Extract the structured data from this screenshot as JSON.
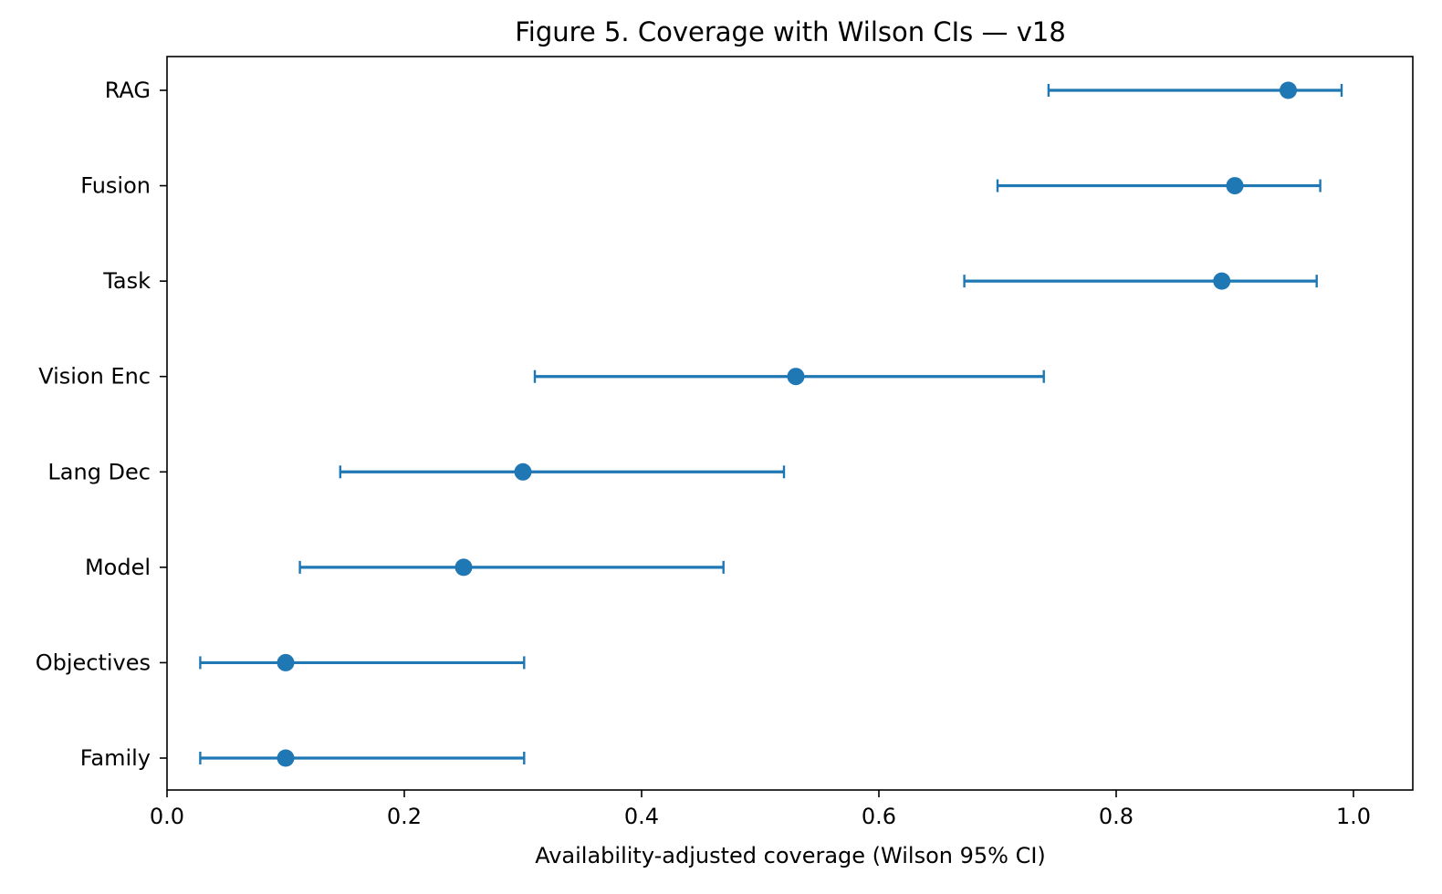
{
  "chart_data": {
    "type": "scatter",
    "title": "Figure 5. Coverage with Wilson CIs — v18",
    "xlabel": "Availability-adjusted coverage (Wilson 95% CI)",
    "ylabel": "",
    "xlim": [
      0.0,
      1.05
    ],
    "xticks": [
      0.0,
      0.2,
      0.4,
      0.6,
      0.8,
      1.0
    ],
    "xtick_labels": [
      "0.0",
      "0.2",
      "0.4",
      "0.6",
      "0.8",
      "1.0"
    ],
    "grid": false,
    "color": "#1f77b4",
    "points": [
      {
        "category": "RAG",
        "value": 0.945,
        "ci_low": 0.743,
        "ci_high": 0.99
      },
      {
        "category": "Fusion",
        "value": 0.9,
        "ci_low": 0.7,
        "ci_high": 0.972
      },
      {
        "category": "Task",
        "value": 0.889,
        "ci_low": 0.672,
        "ci_high": 0.969
      },
      {
        "category": "Vision Enc",
        "value": 0.53,
        "ci_low": 0.31,
        "ci_high": 0.739
      },
      {
        "category": "Lang Dec",
        "value": 0.3,
        "ci_low": 0.146,
        "ci_high": 0.52
      },
      {
        "category": "Model",
        "value": 0.25,
        "ci_low": 0.112,
        "ci_high": 0.469
      },
      {
        "category": "Objectives",
        "value": 0.1,
        "ci_low": 0.028,
        "ci_high": 0.301
      },
      {
        "category": "Family",
        "value": 0.1,
        "ci_low": 0.028,
        "ci_high": 0.301
      }
    ]
  }
}
